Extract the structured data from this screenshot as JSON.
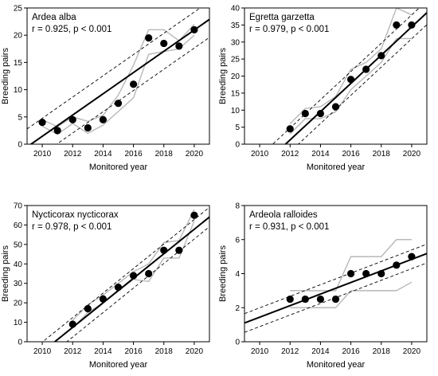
{
  "chart_data": [
    {
      "type": "scatter",
      "species": "Ardea alba",
      "stats": "r = 0.925, p < 0.001",
      "xlabel": "Monitored year",
      "ylabel": "Breeding pairs",
      "xlim": [
        2009,
        2021
      ],
      "ylim": [
        0,
        25
      ],
      "xticks": [
        2010,
        2012,
        2014,
        2016,
        2018,
        2020
      ],
      "yticks": [
        0,
        5,
        10,
        15,
        20,
        25
      ],
      "x": [
        2010,
        2011,
        2012,
        2013,
        2014,
        2015,
        2016,
        2017,
        2018,
        2019,
        2020
      ],
      "y": [
        4,
        2.5,
        4.5,
        3,
        4.5,
        7.5,
        11,
        19.5,
        18.5,
        18,
        21
      ],
      "fit": {
        "intercept_at_xmin": -0.5,
        "slope": 1.95
      },
      "ci_offset": 3.3,
      "gray_upper": [
        4.5,
        3.2,
        5,
        4.2,
        5.3,
        9,
        14.5,
        21,
        21,
        19,
        22
      ],
      "gray_lower": [
        3.3,
        1.8,
        3.8,
        2,
        3.5,
        6,
        8.5,
        16.5,
        17,
        17.5,
        20
      ]
    },
    {
      "type": "scatter",
      "species": "Egretta garzetta",
      "stats": "r = 0.979, p < 0.001",
      "xlabel": "Monitored year",
      "ylabel": "Breeding pairs",
      "xlim": [
        2009,
        2021
      ],
      "ylim": [
        0,
        40
      ],
      "xticks": [
        2010,
        2012,
        2014,
        2016,
        2018,
        2020
      ],
      "yticks": [
        0,
        5,
        10,
        15,
        20,
        25,
        30,
        35,
        40
      ],
      "x": [
        2012,
        2013,
        2014,
        2015,
        2016,
        2017,
        2018,
        2019,
        2020
      ],
      "y": [
        4.5,
        9,
        9,
        11,
        19,
        22,
        26,
        35,
        35
      ],
      "fit": {
        "intercept_at_xmin": -11.2,
        "slope": 4.15
      },
      "ci_offset": 3.5,
      "gray_upper": [
        6,
        10.5,
        11,
        14,
        22,
        24,
        28,
        40,
        38
      ],
      "gray_lower": [
        3,
        7.5,
        7.5,
        9.5,
        16,
        20,
        24,
        31,
        31
      ]
    },
    {
      "type": "scatter",
      "species": "Nycticorax nycticorax",
      "stats": "r = 0.978, p < 0.001",
      "xlabel": "Monitored year",
      "ylabel": "Breeding pairs",
      "xlim": [
        2009,
        2021
      ],
      "ylim": [
        0,
        70
      ],
      "xticks": [
        2010,
        2012,
        2014,
        2016,
        2018,
        2020
      ],
      "yticks": [
        0,
        10,
        20,
        30,
        40,
        50,
        60,
        70
      ],
      "x": [
        2012,
        2013,
        2014,
        2015,
        2016,
        2017,
        2018,
        2019,
        2020
      ],
      "y": [
        9,
        17,
        22,
        28,
        34,
        35,
        47,
        47,
        65
      ],
      "fit": {
        "intercept_at_xmin": -11.5,
        "slope": 6.3
      },
      "ci_offset": 5,
      "gray_upper": [
        11,
        19,
        24,
        30,
        36,
        40,
        51,
        52,
        68
      ],
      "gray_lower": [
        7,
        15,
        20,
        26,
        32,
        31,
        43,
        43,
        62
      ]
    },
    {
      "type": "scatter",
      "species": "Ardeola ralloides",
      "stats": "r = 0.931, p < 0.001",
      "xlabel": "Monitored year",
      "ylabel": "Breeding pairs",
      "xlim": [
        2009,
        2021
      ],
      "ylim": [
        0,
        8
      ],
      "xticks": [
        2010,
        2012,
        2014,
        2016,
        2018,
        2020
      ],
      "yticks": [
        0,
        2,
        4,
        6,
        8
      ],
      "x": [
        2012,
        2013,
        2014,
        2015,
        2016,
        2017,
        2018,
        2019,
        2020
      ],
      "y": [
        2.5,
        2.5,
        2.5,
        2.5,
        4,
        4,
        4,
        4.5,
        5
      ],
      "fit": {
        "intercept_at_xmin": 1.1,
        "slope": 0.34
      },
      "ci_offset": 0.55,
      "gray_upper": [
        3,
        3,
        3,
        3,
        5,
        5,
        5,
        6,
        6
      ],
      "gray_lower": [
        2,
        2,
        2,
        2,
        3,
        3,
        3,
        3,
        3.5
      ]
    }
  ]
}
